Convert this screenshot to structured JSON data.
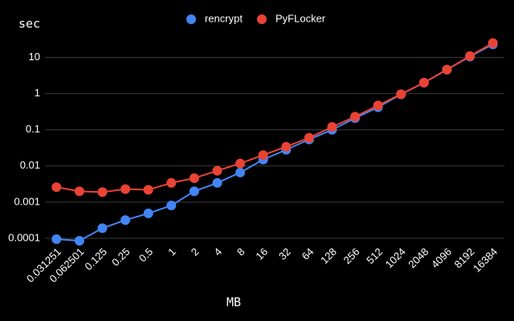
{
  "chart_data": {
    "type": "line",
    "y_label": "sec",
    "x_label": "MB",
    "categories": [
      "0.031251",
      "0.062501",
      "0.125",
      "0.25",
      "0.5",
      "1",
      "2",
      "4",
      "8",
      "16",
      "32",
      "64",
      "128",
      "256",
      "512",
      "1024",
      "2048",
      "4096",
      "8192",
      "16384"
    ],
    "series": [
      {
        "name": "rencrypt",
        "color": "#4285f4",
        "values": [
          9.5e-05,
          8.6e-05,
          0.00019,
          0.00032,
          0.00049,
          0.00081,
          0.002,
          0.0034,
          0.0066,
          0.015,
          0.028,
          0.054,
          0.1,
          0.21,
          0.42,
          0.95,
          2.0,
          4.6,
          10.5,
          23
        ]
      },
      {
        "name": "PyFLocker",
        "color": "#ea4335",
        "values": [
          0.0026,
          0.002,
          0.0019,
          0.0023,
          0.0022,
          0.0034,
          0.0046,
          0.0074,
          0.0117,
          0.02,
          0.034,
          0.06,
          0.12,
          0.23,
          0.47,
          0.96,
          2.0,
          4.6,
          10.9,
          25
        ]
      }
    ],
    "log_y": true,
    "ylim": [
      0.0001,
      30
    ],
    "yticks": [
      0.0001,
      0.001,
      0.01,
      0.1,
      1,
      10
    ],
    "grid": true,
    "legend": "top"
  }
}
